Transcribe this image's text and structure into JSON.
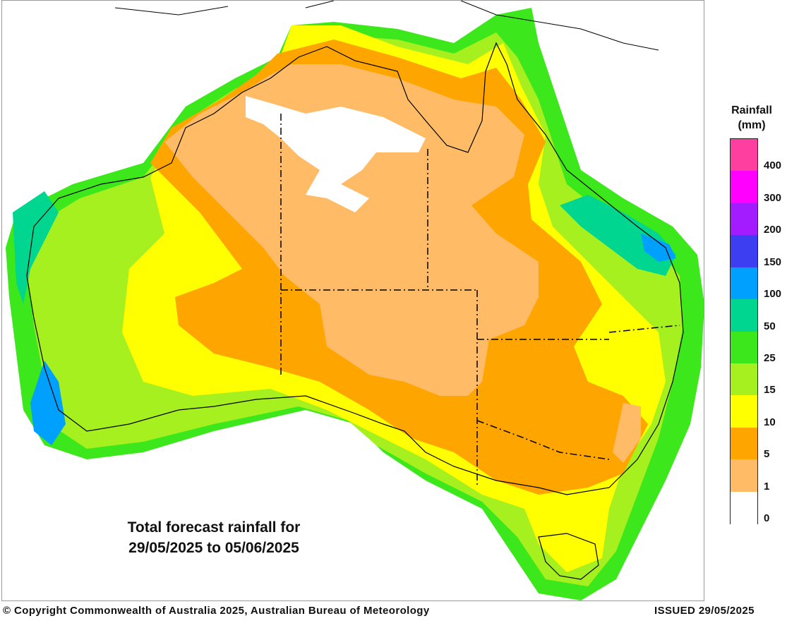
{
  "map": {
    "title_line1": "Total forecast rainfall for",
    "title_line2": "29/05/2025 to 05/06/2025"
  },
  "legend": {
    "title_line1": "Rainfall",
    "title_line2": "(mm)",
    "classes": [
      {
        "label": "400",
        "color": "#ff3fa0"
      },
      {
        "label": "300",
        "color": "#ff00ff"
      },
      {
        "label": "200",
        "color": "#a31bff"
      },
      {
        "label": "150",
        "color": "#3d3df2"
      },
      {
        "label": "100",
        "color": "#00a0ff"
      },
      {
        "label": "50",
        "color": "#00d68f"
      },
      {
        "label": "25",
        "color": "#3ce81b"
      },
      {
        "label": "15",
        "color": "#a5f01e"
      },
      {
        "label": "10",
        "color": "#ffff00"
      },
      {
        "label": "5",
        "color": "#ffa500"
      },
      {
        "label": "1",
        "color": "#ffbb66"
      },
      {
        "label": "0",
        "color": "#ffffff"
      }
    ]
  },
  "footer": {
    "copyright": "© Copyright Commonwealth of Australia 2025, Australian Bureau of Meteorology",
    "issued": "ISSUED 29/05/2025"
  }
}
